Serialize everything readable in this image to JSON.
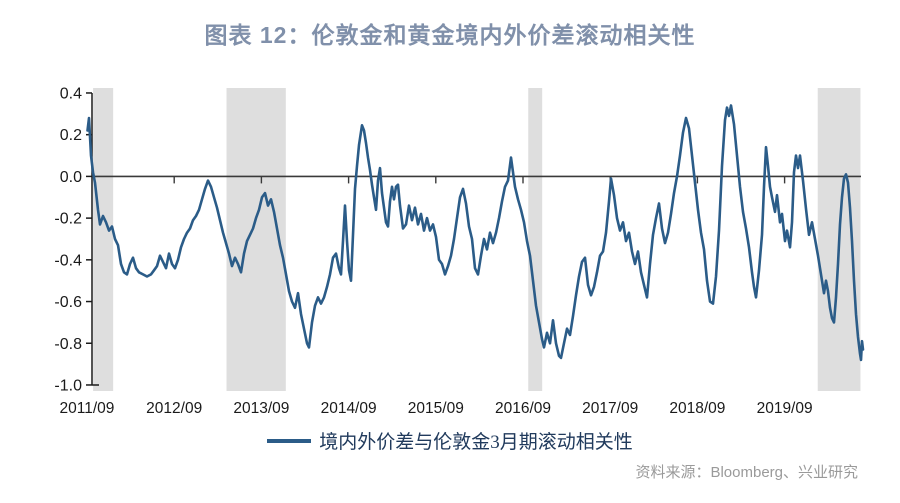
{
  "title": {
    "text": "图表 12：伦敦金和黄金境内外价差滚动相关性",
    "color": "#8090AA"
  },
  "legend": {
    "label": "境内外价差与伦敦金3月期滚动相关性",
    "line_color": "#2B5C88",
    "text_color": "#203A5C"
  },
  "source": {
    "text": "资料来源：Bloomberg、兴业研究",
    "color": "#9A9A9A"
  },
  "colors": {
    "axis": "#1a1a1a",
    "zero_line": "#3a3a3a",
    "band": "#DEDEDE",
    "series": "#2B5C88",
    "background": "#ffffff"
  },
  "chart_data": {
    "type": "line",
    "title": "图表 12：伦敦金和黄金境内外价差滚动相关性",
    "xlabel": "",
    "ylabel": "",
    "grid": false,
    "zero_line": true,
    "legend_position": "bottom",
    "x_axis": {
      "unit": "years since 2011/09",
      "range": [
        0,
        8.9
      ],
      "tick_positions": [
        0,
        1,
        2,
        3,
        4,
        5,
        6,
        7,
        8
      ],
      "tick_labels": [
        "2011/09",
        "2012/09",
        "2013/09",
        "2014/09",
        "2015/09",
        "2016/09",
        "2017/09",
        "2018/09",
        "2019/09"
      ]
    },
    "y_axis": {
      "range": [
        -1.0,
        0.4
      ],
      "tick_positions": [
        0.4,
        0.2,
        0.0,
        -0.2,
        -0.4,
        -0.6,
        -0.8,
        -1.0
      ],
      "tick_labels": [
        "0.4",
        "0.2",
        "0.0",
        "-0.2",
        "-0.4",
        "-0.6",
        "-0.8",
        "-1.0"
      ]
    },
    "shaded_bands": {
      "color": "#DEDEDE",
      "ranges_years": [
        [
          0.07,
          0.3
        ],
        [
          1.6,
          2.28
        ],
        [
          5.06,
          5.22
        ],
        [
          8.38,
          8.87
        ]
      ]
    },
    "series": [
      {
        "name": "境内外价差与伦敦金3月期滚动相关性",
        "color": "#2B5C88",
        "points": [
          [
            0.006,
            0.22
          ],
          [
            0.023,
            0.28
          ],
          [
            0.046,
            0.1
          ],
          [
            0.069,
            0.02
          ],
          [
            0.092,
            -0.03
          ],
          [
            0.126,
            -0.16
          ],
          [
            0.149,
            -0.23
          ],
          [
            0.183,
            -0.19
          ],
          [
            0.218,
            -0.22
          ],
          [
            0.252,
            -0.26
          ],
          [
            0.287,
            -0.24
          ],
          [
            0.321,
            -0.3
          ],
          [
            0.356,
            -0.33
          ],
          [
            0.39,
            -0.42
          ],
          [
            0.424,
            -0.46
          ],
          [
            0.459,
            -0.47
          ],
          [
            0.493,
            -0.42
          ],
          [
            0.528,
            -0.39
          ],
          [
            0.562,
            -0.44
          ],
          [
            0.596,
            -0.46
          ],
          [
            0.642,
            -0.47
          ],
          [
            0.688,
            -0.48
          ],
          [
            0.734,
            -0.47
          ],
          [
            0.768,
            -0.45
          ],
          [
            0.803,
            -0.43
          ],
          [
            0.837,
            -0.38
          ],
          [
            0.872,
            -0.41
          ],
          [
            0.906,
            -0.44
          ],
          [
            0.94,
            -0.37
          ],
          [
            0.975,
            -0.42
          ],
          [
            1.009,
            -0.44
          ],
          [
            1.044,
            -0.4
          ],
          [
            1.078,
            -0.34
          ],
          [
            1.112,
            -0.3
          ],
          [
            1.147,
            -0.27
          ],
          [
            1.181,
            -0.25
          ],
          [
            1.216,
            -0.21
          ],
          [
            1.25,
            -0.19
          ],
          [
            1.284,
            -0.16
          ],
          [
            1.319,
            -0.11
          ],
          [
            1.353,
            -0.06
          ],
          [
            1.388,
            -0.02
          ],
          [
            1.422,
            -0.05
          ],
          [
            1.456,
            -0.1
          ],
          [
            1.491,
            -0.15
          ],
          [
            1.525,
            -0.21
          ],
          [
            1.56,
            -0.27
          ],
          [
            1.594,
            -0.32
          ],
          [
            1.628,
            -0.37
          ],
          [
            1.663,
            -0.43
          ],
          [
            1.697,
            -0.39
          ],
          [
            1.732,
            -0.42
          ],
          [
            1.766,
            -0.46
          ],
          [
            1.8,
            -0.37
          ],
          [
            1.835,
            -0.31
          ],
          [
            1.869,
            -0.28
          ],
          [
            1.904,
            -0.25
          ],
          [
            1.938,
            -0.2
          ],
          [
            1.972,
            -0.16
          ],
          [
            2.007,
            -0.1
          ],
          [
            2.041,
            -0.08
          ],
          [
            2.076,
            -0.14
          ],
          [
            2.11,
            -0.11
          ],
          [
            2.144,
            -0.17
          ],
          [
            2.179,
            -0.25
          ],
          [
            2.213,
            -0.33
          ],
          [
            2.248,
            -0.39
          ],
          [
            2.282,
            -0.47
          ],
          [
            2.317,
            -0.55
          ],
          [
            2.351,
            -0.6
          ],
          [
            2.385,
            -0.63
          ],
          [
            2.42,
            -0.56
          ],
          [
            2.454,
            -0.66
          ],
          [
            2.489,
            -0.73
          ],
          [
            2.523,
            -0.8
          ],
          [
            2.546,
            -0.82
          ],
          [
            2.58,
            -0.7
          ],
          [
            2.615,
            -0.62
          ],
          [
            2.649,
            -0.58
          ],
          [
            2.683,
            -0.61
          ],
          [
            2.718,
            -0.58
          ],
          [
            2.752,
            -0.53
          ],
          [
            2.787,
            -0.47
          ],
          [
            2.821,
            -0.39
          ],
          [
            2.855,
            -0.37
          ],
          [
            2.89,
            -0.44
          ],
          [
            2.913,
            -0.47
          ],
          [
            2.936,
            -0.31
          ],
          [
            2.959,
            -0.14
          ],
          [
            2.982,
            -0.31
          ],
          [
            3.005,
            -0.45
          ],
          [
            3.028,
            -0.5
          ],
          [
            3.05,
            -0.28
          ],
          [
            3.073,
            -0.06
          ],
          [
            3.096,
            0.05
          ],
          [
            3.119,
            0.15
          ],
          [
            3.154,
            0.245
          ],
          [
            3.177,
            0.22
          ],
          [
            3.2,
            0.16
          ],
          [
            3.222,
            0.09
          ],
          [
            3.245,
            0.03
          ],
          [
            3.268,
            -0.04
          ],
          [
            3.291,
            -0.1
          ],
          [
            3.314,
            -0.16
          ],
          [
            3.337,
            -0.02
          ],
          [
            3.36,
            0.04
          ],
          [
            3.383,
            -0.08
          ],
          [
            3.406,
            -0.15
          ],
          [
            3.429,
            -0.22
          ],
          [
            3.452,
            -0.24
          ],
          [
            3.475,
            -0.12
          ],
          [
            3.498,
            -0.05
          ],
          [
            3.521,
            -0.11
          ],
          [
            3.544,
            -0.05
          ],
          [
            3.567,
            -0.04
          ],
          [
            3.589,
            -0.14
          ],
          [
            3.624,
            -0.25
          ],
          [
            3.658,
            -0.23
          ],
          [
            3.693,
            -0.14
          ],
          [
            3.727,
            -0.21
          ],
          [
            3.761,
            -0.15
          ],
          [
            3.796,
            -0.23
          ],
          [
            3.83,
            -0.18
          ],
          [
            3.865,
            -0.26
          ],
          [
            3.899,
            -0.2
          ],
          [
            3.933,
            -0.26
          ],
          [
            3.968,
            -0.23
          ],
          [
            4.002,
            -0.29
          ],
          [
            4.037,
            -0.4
          ],
          [
            4.071,
            -0.42
          ],
          [
            4.106,
            -0.47
          ],
          [
            4.14,
            -0.43
          ],
          [
            4.174,
            -0.38
          ],
          [
            4.209,
            -0.3
          ],
          [
            4.243,
            -0.2
          ],
          [
            4.278,
            -0.1
          ],
          [
            4.312,
            -0.06
          ],
          [
            4.346,
            -0.13
          ],
          [
            4.381,
            -0.24
          ],
          [
            4.415,
            -0.3
          ],
          [
            4.45,
            -0.44
          ],
          [
            4.484,
            -0.47
          ],
          [
            4.518,
            -0.38
          ],
          [
            4.553,
            -0.3
          ],
          [
            4.587,
            -0.35
          ],
          [
            4.622,
            -0.27
          ],
          [
            4.656,
            -0.32
          ],
          [
            4.69,
            -0.27
          ],
          [
            4.725,
            -0.2
          ],
          [
            4.759,
            -0.12
          ],
          [
            4.794,
            -0.05
          ],
          [
            4.828,
            -0.02
          ],
          [
            4.862,
            0.09
          ],
          [
            4.885,
            0.02
          ],
          [
            4.908,
            -0.05
          ],
          [
            4.943,
            -0.11
          ],
          [
            4.977,
            -0.16
          ],
          [
            5.011,
            -0.22
          ],
          [
            5.046,
            -0.31
          ],
          [
            5.08,
            -0.38
          ],
          [
            5.115,
            -0.5
          ],
          [
            5.149,
            -0.62
          ],
          [
            5.183,
            -0.7
          ],
          [
            5.218,
            -0.78
          ],
          [
            5.241,
            -0.82
          ],
          [
            5.275,
            -0.75
          ],
          [
            5.31,
            -0.8
          ],
          [
            5.344,
            -0.69
          ],
          [
            5.378,
            -0.8
          ],
          [
            5.413,
            -0.86
          ],
          [
            5.436,
            -0.87
          ],
          [
            5.47,
            -0.8
          ],
          [
            5.505,
            -0.73
          ],
          [
            5.539,
            -0.76
          ],
          [
            5.573,
            -0.67
          ],
          [
            5.608,
            -0.57
          ],
          [
            5.642,
            -0.48
          ],
          [
            5.677,
            -0.41
          ],
          [
            5.711,
            -0.39
          ],
          [
            5.745,
            -0.52
          ],
          [
            5.78,
            -0.57
          ],
          [
            5.814,
            -0.53
          ],
          [
            5.849,
            -0.46
          ],
          [
            5.883,
            -0.38
          ],
          [
            5.917,
            -0.36
          ],
          [
            5.952,
            -0.27
          ],
          [
            5.986,
            -0.12
          ],
          [
            6.009,
            -0.01
          ],
          [
            6.044,
            -0.09
          ],
          [
            6.078,
            -0.2
          ],
          [
            6.112,
            -0.26
          ],
          [
            6.147,
            -0.22
          ],
          [
            6.181,
            -0.31
          ],
          [
            6.216,
            -0.27
          ],
          [
            6.25,
            -0.36
          ],
          [
            6.284,
            -0.42
          ],
          [
            6.319,
            -0.36
          ],
          [
            6.353,
            -0.46
          ],
          [
            6.388,
            -0.52
          ],
          [
            6.422,
            -0.58
          ],
          [
            6.456,
            -0.42
          ],
          [
            6.491,
            -0.28
          ],
          [
            6.525,
            -0.2
          ],
          [
            6.56,
            -0.13
          ],
          [
            6.594,
            -0.25
          ],
          [
            6.628,
            -0.32
          ],
          [
            6.663,
            -0.27
          ],
          [
            6.697,
            -0.18
          ],
          [
            6.732,
            -0.08
          ],
          [
            6.766,
            0.0
          ],
          [
            6.8,
            0.1
          ],
          [
            6.835,
            0.21
          ],
          [
            6.869,
            0.28
          ],
          [
            6.904,
            0.23
          ],
          [
            6.938,
            0.1
          ],
          [
            6.972,
            -0.03
          ],
          [
            7.007,
            -0.16
          ],
          [
            7.041,
            -0.27
          ],
          [
            7.076,
            -0.35
          ],
          [
            7.11,
            -0.5
          ],
          [
            7.144,
            -0.6
          ],
          [
            7.179,
            -0.61
          ],
          [
            7.213,
            -0.48
          ],
          [
            7.248,
            -0.26
          ],
          [
            7.282,
            0.05
          ],
          [
            7.316,
            0.27
          ],
          [
            7.339,
            0.33
          ],
          [
            7.362,
            0.29
          ],
          [
            7.385,
            0.34
          ],
          [
            7.42,
            0.25
          ],
          [
            7.454,
            0.1
          ],
          [
            7.489,
            -0.05
          ],
          [
            7.523,
            -0.17
          ],
          [
            7.557,
            -0.25
          ],
          [
            7.592,
            -0.34
          ],
          [
            7.626,
            -0.46
          ],
          [
            7.649,
            -0.53
          ],
          [
            7.672,
            -0.58
          ],
          [
            7.706,
            -0.45
          ],
          [
            7.741,
            -0.28
          ],
          [
            7.764,
            -0.05
          ],
          [
            7.787,
            0.14
          ],
          [
            7.81,
            0.05
          ],
          [
            7.833,
            -0.05
          ],
          [
            7.856,
            -0.1
          ],
          [
            7.89,
            -0.17
          ],
          [
            7.913,
            -0.09
          ],
          [
            7.947,
            -0.22
          ],
          [
            7.97,
            -0.18
          ],
          [
            8.005,
            -0.31
          ],
          [
            8.028,
            -0.26
          ],
          [
            8.062,
            -0.34
          ],
          [
            8.085,
            -0.22
          ],
          [
            8.108,
            0.02
          ],
          [
            8.131,
            0.1
          ],
          [
            8.154,
            0.04
          ],
          [
            8.177,
            0.1
          ],
          [
            8.211,
            -0.02
          ],
          [
            8.246,
            -0.16
          ],
          [
            8.28,
            -0.28
          ],
          [
            8.314,
            -0.22
          ],
          [
            8.349,
            -0.3
          ],
          [
            8.383,
            -0.38
          ],
          [
            8.406,
            -0.44
          ],
          [
            8.429,
            -0.5
          ],
          [
            8.452,
            -0.56
          ],
          [
            8.475,
            -0.5
          ],
          [
            8.498,
            -0.55
          ],
          [
            8.521,
            -0.63
          ],
          [
            8.544,
            -0.68
          ],
          [
            8.567,
            -0.7
          ],
          [
            8.589,
            -0.58
          ],
          [
            8.612,
            -0.42
          ],
          [
            8.635,
            -0.23
          ],
          [
            8.658,
            -0.1
          ],
          [
            8.681,
            -0.01
          ],
          [
            8.704,
            0.01
          ],
          [
            8.727,
            -0.03
          ],
          [
            8.75,
            -0.15
          ],
          [
            8.773,
            -0.31
          ],
          [
            8.796,
            -0.5
          ],
          [
            8.819,
            -0.66
          ],
          [
            8.842,
            -0.77
          ],
          [
            8.865,
            -0.85
          ],
          [
            8.876,
            -0.88
          ],
          [
            8.888,
            -0.79
          ],
          [
            8.899,
            -0.83
          ]
        ]
      }
    ]
  }
}
